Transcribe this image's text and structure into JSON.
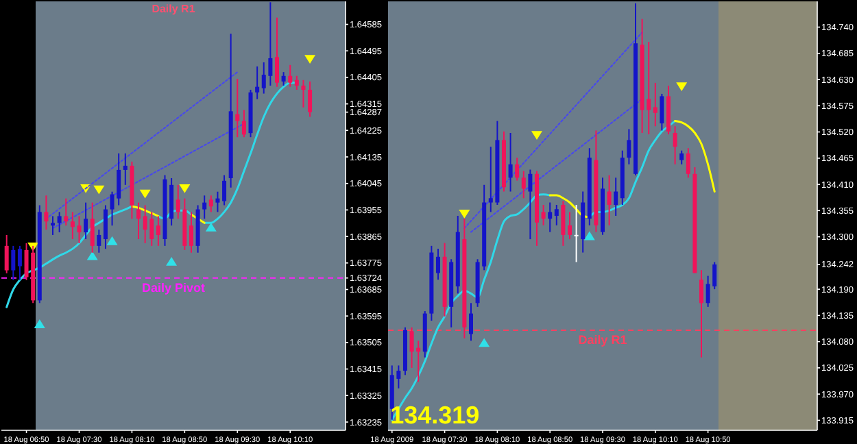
{
  "chart_data": [
    {
      "type": "candlestick",
      "x": [
        "2009-08-18T06:35",
        "2009-08-18T06:40",
        "2009-08-18T06:45",
        "2009-08-18T06:50",
        "2009-08-18T06:55",
        "2009-08-18T07:00",
        "2009-08-18T07:05",
        "2009-08-18T07:10",
        "2009-08-18T07:15",
        "2009-08-18T07:20",
        "2009-08-18T07:25",
        "2009-08-18T07:30",
        "2009-08-18T07:35",
        "2009-08-18T07:40",
        "2009-08-18T07:45",
        "2009-08-18T07:50",
        "2009-08-18T07:55",
        "2009-08-18T08:00",
        "2009-08-18T08:05",
        "2009-08-18T08:10",
        "2009-08-18T08:15",
        "2009-08-18T08:20",
        "2009-08-18T08:25",
        "2009-08-18T08:30",
        "2009-08-18T08:35",
        "2009-08-18T08:40",
        "2009-08-18T08:45",
        "2009-08-18T08:50",
        "2009-08-18T08:55",
        "2009-08-18T09:00",
        "2009-08-18T09:05",
        "2009-08-18T09:10",
        "2009-08-18T09:15",
        "2009-08-18T09:20",
        "2009-08-18T09:25",
        "2009-08-18T09:30",
        "2009-08-18T09:35",
        "2009-08-18T09:40",
        "2009-08-18T09:45",
        "2009-08-18T09:50",
        "2009-08-18T09:55",
        "2009-08-18T10:00",
        "2009-08-18T10:05",
        "2009-08-18T10:10",
        "2009-08-18T10:15",
        "2009-08-18T10:20",
        "2009-08-18T10:25"
      ],
      "ohlc": [
        [
          1.63833,
          1.6387,
          1.6374,
          1.6375
        ],
        [
          1.6375,
          1.63833,
          1.63717,
          1.63819
        ],
        [
          1.63764,
          1.63833,
          1.63717,
          1.63823
        ],
        [
          1.63819,
          1.63842,
          1.63717,
          1.63727
        ],
        [
          1.6381,
          1.63833,
          1.63639,
          1.63648
        ],
        [
          1.63648,
          1.63971,
          1.63639,
          1.63948
        ],
        [
          1.63948,
          1.64004,
          1.63888,
          1.63916
        ],
        [
          1.63902,
          1.63934,
          1.6387,
          1.63911
        ],
        [
          1.63911,
          1.63948,
          1.63879,
          1.63934
        ],
        [
          1.63934,
          1.63994,
          1.63902,
          1.63916
        ],
        [
          1.63916,
          1.63948,
          1.63856,
          1.63897
        ],
        [
          1.63902,
          1.63934,
          1.63842,
          1.63879
        ],
        [
          1.63879,
          1.6398,
          1.63856,
          1.63925
        ],
        [
          1.63925,
          1.6398,
          1.6381,
          1.63833
        ],
        [
          1.63833,
          1.63888,
          1.6381,
          1.6387
        ],
        [
          1.63856,
          1.63971,
          1.63823,
          1.63957
        ],
        [
          1.63957,
          1.64017,
          1.63902,
          1.64008
        ],
        [
          1.63994,
          1.64147,
          1.63971,
          1.64091
        ],
        [
          1.64091,
          1.64147,
          1.6404,
          1.64105
        ],
        [
          1.64105,
          1.64119,
          1.63925,
          1.63971
        ],
        [
          1.63957,
          1.6398,
          1.63856,
          1.63925
        ],
        [
          1.63934,
          1.63971,
          1.63842,
          1.63888
        ],
        [
          1.63925,
          1.63948,
          1.63833,
          1.63856
        ],
        [
          1.63902,
          1.63934,
          1.63833,
          1.6387
        ],
        [
          1.63856,
          1.64073,
          1.63833,
          1.64059
        ],
        [
          1.63925,
          1.64063,
          1.63902,
          1.6404
        ],
        [
          1.6399,
          1.6404,
          1.63925,
          1.63948
        ],
        [
          1.63957,
          1.63994,
          1.63819,
          1.63833
        ],
        [
          1.63902,
          1.63948,
          1.6381,
          1.63833
        ],
        [
          1.63833,
          1.63971,
          1.6381,
          1.63957
        ],
        [
          1.63957,
          1.64004,
          1.63925,
          1.6398
        ],
        [
          1.6399,
          1.64004,
          1.63948,
          1.63967
        ],
        [
          1.6398,
          1.64017,
          1.63948,
          1.63994
        ],
        [
          1.63985,
          1.64073,
          1.63971,
          1.64054
        ],
        [
          1.64063,
          1.64553,
          1.64031,
          1.6429
        ],
        [
          1.6428,
          1.644,
          1.64202,
          1.64257
        ],
        [
          1.64257,
          1.64294,
          1.64202,
          1.64211
        ],
        [
          1.64216,
          1.64363,
          1.64202,
          1.64354
        ],
        [
          1.64354,
          1.64442,
          1.64331,
          1.64373
        ],
        [
          1.64368,
          1.64456,
          1.6435,
          1.64414
        ],
        [
          1.6441,
          1.6466,
          1.64377,
          1.6447
        ],
        [
          1.64474,
          1.64608,
          1.64373,
          1.64387
        ],
        [
          1.64391,
          1.64423,
          1.64377,
          1.6441
        ],
        [
          1.6441,
          1.64447,
          1.64373,
          1.64387
        ],
        [
          1.64396,
          1.6441,
          1.64363,
          1.64377
        ],
        [
          1.64377,
          1.64396,
          1.64303,
          1.64363
        ],
        [
          1.64363,
          1.64391,
          1.64271,
          1.64287
        ]
      ],
      "colors": [
        "#f0145a",
        "#1414c8",
        "#1414c8",
        "#f0145a",
        "#f0145a",
        "#1414c8",
        "#f0145a",
        "#1414c8",
        "#1414c8",
        "#f0145a",
        "#f0145a",
        "#f0145a",
        "#1414c8",
        "#f0145a",
        "#1414c8",
        "#1414c8",
        "#1414c8",
        "#1414c8",
        "#1414c8",
        "#f0145a",
        "#f0145a",
        "#f0145a",
        "#f0145a",
        "#f0145a",
        "#1414c8",
        "#1414c8",
        "#f0145a",
        "#f0145a",
        "#f0145a",
        "#1414c8",
        "#1414c8",
        "#f0145a",
        "#1414c8",
        "#1414c8",
        "#1414c8",
        "#f0145a",
        "#f0145a",
        "#1414c8",
        "#1414c8",
        "#1414c8",
        "#1414c8",
        "#f0145a",
        "#1414c8",
        "#f0145a",
        "#f0145a",
        "#f0145a",
        "#f0145a"
      ],
      "series": [
        {
          "type": "line",
          "color": "#30d8e8",
          "values": [
            1.63625,
            1.63685,
            1.63717,
            1.6374,
            1.6375,
            1.63759,
            1.63773,
            1.63787,
            1.638,
            1.6381,
            1.63823,
            1.63842,
            1.6387,
            1.63897,
            1.63911,
            1.63925,
            1.63939,
            1.63948,
            1.63957,
            1.63967,
            null,
            null,
            null,
            1.63934,
            1.63925,
            1.63948,
            1.63953,
            1.63953,
            1.63939,
            null,
            1.63911,
            1.63911,
            1.63925,
            1.63948,
            1.6398,
            1.64027,
            1.64087,
            1.64147,
            1.64211,
            1.64271,
            1.64317,
            1.6435,
            1.64373,
            1.64387,
            1.64387,
            null,
            null
          ]
        },
        {
          "type": "line",
          "color": "#ffff00",
          "values": [
            null,
            null,
            null,
            null,
            null,
            null,
            null,
            null,
            null,
            null,
            null,
            null,
            null,
            null,
            null,
            null,
            null,
            null,
            null,
            1.63967,
            1.63962,
            1.63953,
            1.63944,
            1.63934,
            null,
            null,
            null,
            null,
            1.63939,
            1.63925,
            1.63911,
            null,
            null,
            null,
            null,
            null,
            null,
            null,
            null,
            null,
            null,
            null,
            null,
            null,
            null,
            null,
            null
          ]
        },
        {
          "type": "scatter",
          "marker": "triangle",
          "color": "#ffff00",
          "x": [
            "2009-08-18T06:55",
            "2009-08-18T07:35",
            "2009-08-18T07:45",
            "2009-08-18T08:20",
            "2009-08-18T08:50",
            "2009-08-18T10:25"
          ],
          "values": [
            1.63833,
            1.64031,
            1.64027,
            1.64013,
            1.64031,
            1.6447
          ]
        },
        {
          "type": "scatter",
          "marker": "triangle",
          "color": "#30e0e8",
          "x": [
            "2009-08-18T07:00",
            "2009-08-18T07:40",
            "2009-08-18T07:55",
            "2009-08-18T08:40",
            "2009-08-18T09:10"
          ],
          "values": [
            1.63565,
            1.63796,
            1.63847,
            1.63777,
            1.63893
          ]
        },
        {
          "type": "line",
          "line_style": "dotted",
          "color": "#4646f0",
          "x": [
            "2009-08-18T07:05",
            "2009-08-18T09:30"
          ],
          "values": [
            1.63925,
            1.64423
          ]
        },
        {
          "type": "line",
          "line_style": "dotted",
          "color": "#4646f0",
          "x": [
            "2009-08-18T07:10",
            "2009-08-18T09:35"
          ],
          "values": [
            1.63893,
            1.64248
          ]
        }
      ],
      "xlim": [
        "2009-08-18T06:31",
        "2009-08-18T10:52"
      ],
      "xticks": [
        {
          "value": "2009-08-18T06:50",
          "label": "18 Aug 06:50"
        },
        {
          "value": "2009-08-18T07:30",
          "label": "18 Aug 07:30"
        },
        {
          "value": "2009-08-18T08:10",
          "label": "18 Aug 08:10"
        },
        {
          "value": "2009-08-18T08:50",
          "label": "18 Aug 08:50"
        },
        {
          "value": "2009-08-18T09:30",
          "label": "18 Aug 09:30"
        },
        {
          "value": "2009-08-18T10:10",
          "label": "18 Aug 10:10"
        }
      ],
      "ylim": [
        1.63207,
        1.64663
      ],
      "yticks": [
        1.63235,
        1.63325,
        1.63415,
        1.63505,
        1.63595,
        1.63685,
        1.63724,
        1.63775,
        1.63865,
        1.63955,
        1.64045,
        1.64135,
        1.64225,
        1.64287,
        1.64315,
        1.64405,
        1.64495,
        1.64585
      ],
      "ref_lines": [
        {
          "axis": "y",
          "value": 1.63724,
          "label": "Daily Pivot",
          "color": "#ff20ff",
          "line_style": "dashed"
        }
      ],
      "bands": [
        {
          "axis": "x",
          "from": "2009-08-18T06:31",
          "to": "2009-08-18T06:57",
          "color": "#000000"
        }
      ],
      "annotations": [
        "Daily R1"
      ]
    },
    {
      "type": "candlestick",
      "x": [
        "2009-08-18T06:50",
        "2009-08-18T06:55",
        "2009-08-18T07:00",
        "2009-08-18T07:05",
        "2009-08-18T07:10",
        "2009-08-18T07:15",
        "2009-08-18T07:20",
        "2009-08-18T07:25",
        "2009-08-18T07:30",
        "2009-08-18T07:35",
        "2009-08-18T07:40",
        "2009-08-18T07:45",
        "2009-08-18T07:50",
        "2009-08-18T07:55",
        "2009-08-18T08:00",
        "2009-08-18T08:05",
        "2009-08-18T08:10",
        "2009-08-18T08:15",
        "2009-08-18T08:20",
        "2009-08-18T08:25",
        "2009-08-18T08:30",
        "2009-08-18T08:35",
        "2009-08-18T08:40",
        "2009-08-18T08:45",
        "2009-08-18T08:50",
        "2009-08-18T08:55",
        "2009-08-18T09:00",
        "2009-08-18T09:05",
        "2009-08-18T09:10",
        "2009-08-18T09:15",
        "2009-08-18T09:20",
        "2009-08-18T09:25",
        "2009-08-18T09:30",
        "2009-08-18T09:35",
        "2009-08-18T09:40",
        "2009-08-18T09:45",
        "2009-08-18T09:50",
        "2009-08-18T09:55",
        "2009-08-18T10:00",
        "2009-08-18T10:05",
        "2009-08-18T10:10",
        "2009-08-18T10:15",
        "2009-08-18T10:20",
        "2009-08-18T10:25",
        "2009-08-18T10:30",
        "2009-08-18T10:35",
        "2009-08-18T10:40",
        "2009-08-18T10:45",
        "2009-08-18T10:50",
        "2009-08-18T10:55"
      ],
      "ohlc": [
        [
          133.939,
          134.03,
          133.916,
          134.01
        ],
        [
          134.002,
          134.03,
          133.982,
          134.019
        ],
        [
          134.019,
          134.11,
          134.01,
          134.104
        ],
        [
          134.102,
          134.11,
          134.025,
          134.059
        ],
        [
          134.067,
          134.082,
          133.996,
          134.059
        ],
        [
          134.059,
          134.144,
          134.047,
          134.139
        ],
        [
          134.139,
          134.281,
          134.124,
          134.267
        ],
        [
          134.224,
          134.275,
          134.21,
          134.258
        ],
        [
          134.258,
          134.287,
          134.133,
          134.153
        ],
        [
          134.153,
          134.253,
          134.11,
          134.247
        ],
        [
          134.196,
          134.344,
          134.181,
          134.31
        ],
        [
          134.295,
          134.338,
          134.087,
          134.11
        ],
        [
          134.096,
          134.161,
          134.082,
          134.139
        ],
        [
          134.161,
          134.253,
          134.153,
          134.247
        ],
        [
          134.238,
          134.409,
          134.23,
          134.372
        ],
        [
          134.372,
          134.489,
          134.352,
          134.381
        ],
        [
          134.372,
          134.543,
          134.367,
          134.503
        ],
        [
          134.503,
          134.521,
          134.395,
          134.404
        ],
        [
          134.424,
          134.518,
          134.395,
          134.452
        ],
        [
          134.452,
          134.466,
          134.418,
          134.424
        ],
        [
          134.424,
          134.438,
          134.381,
          134.401
        ],
        [
          134.395,
          134.441,
          134.295,
          134.432
        ],
        [
          134.432,
          134.438,
          134.281,
          134.33
        ],
        [
          134.352,
          134.367,
          134.324,
          134.338
        ],
        [
          134.338,
          134.372,
          134.31,
          134.352
        ],
        [
          134.344,
          134.367,
          134.324,
          134.358
        ],
        [
          134.367,
          134.375,
          134.281,
          134.304
        ],
        [
          134.324,
          134.352,
          134.295,
          134.304
        ],
        [
          134.304,
          134.367,
          134.247,
          134.304
        ],
        [
          134.295,
          134.395,
          134.267,
          134.372
        ],
        [
          134.338,
          134.486,
          134.324,
          134.466
        ],
        [
          134.461,
          134.523,
          134.31,
          134.324
        ],
        [
          134.31,
          134.424,
          134.304,
          134.401
        ],
        [
          134.395,
          134.429,
          134.324,
          134.367
        ],
        [
          134.367,
          134.424,
          134.344,
          134.395
        ],
        [
          134.381,
          134.481,
          134.367,
          134.466
        ],
        [
          134.466,
          134.526,
          134.452,
          134.503
        ],
        [
          134.432,
          134.79,
          134.429,
          134.706
        ],
        [
          134.703,
          134.757,
          134.518,
          134.566
        ],
        [
          134.589,
          134.709,
          134.515,
          134.566
        ],
        [
          134.572,
          134.623,
          134.532,
          134.56
        ],
        [
          134.538,
          134.6,
          134.523,
          134.595
        ],
        [
          134.595,
          134.617,
          134.515,
          134.521
        ],
        [
          134.518,
          134.532,
          134.452,
          134.489
        ],
        [
          134.461,
          134.481,
          134.452,
          134.475
        ],
        [
          134.475,
          134.486,
          134.424,
          134.432
        ],
        [
          134.432,
          134.446,
          134.224,
          134.224
        ],
        [
          134.21,
          134.23,
          134.047,
          134.161
        ],
        [
          134.161,
          134.218,
          134.153,
          134.201
        ],
        [
          134.196,
          134.247,
          134.19,
          134.242
        ]
      ],
      "colors": [
        "#1414c8",
        "#1414c8",
        "#1414c8",
        "#f0145a",
        "#f0145a",
        "#1414c8",
        "#1414c8",
        "#1414c8",
        "#f0145a",
        "#1414c8",
        "#1414c8",
        "#f0145a",
        "#1414c8",
        "#1414c8",
        "#1414c8",
        "#1414c8",
        "#1414c8",
        "#f0145a",
        "#1414c8",
        "#f0145a",
        "#f0145a",
        "#1414c8",
        "#f0145a",
        "#f0145a",
        "#1414c8",
        "#1414c8",
        "#f0145a",
        "#f0145a",
        "#ffffff",
        "#1414c8",
        "#1414c8",
        "#f0145a",
        "#1414c8",
        "#f0145a",
        "#1414c8",
        "#1414c8",
        "#1414c8",
        "#1414c8",
        "#f0145a",
        "#f0145a",
        "#f0145a",
        "#1414c8",
        "#f0145a",
        "#f0145a",
        "#1414c8",
        "#f0145a",
        "#f0145a",
        "#f0145a",
        "#1414c8",
        "#1414c8"
      ],
      "series": [
        {
          "type": "line",
          "color": "#30d8e8",
          "values": [
            133.916,
            133.939,
            133.962,
            133.982,
            134.008,
            134.039,
            134.076,
            134.11,
            134.133,
            134.161,
            134.176,
            134.187,
            134.181,
            134.173,
            134.21,
            134.247,
            134.293,
            134.332,
            134.344,
            134.347,
            134.358,
            134.372,
            134.387,
            134.389,
            134.387,
            null,
            null,
            null,
            null,
            null,
            134.341,
            134.352,
            134.352,
            134.355,
            134.361,
            134.367,
            134.381,
            134.415,
            134.446,
            134.481,
            134.503,
            134.521,
            134.532,
            134.543,
            null,
            null,
            null,
            null,
            null,
            null
          ]
        },
        {
          "type": "line",
          "color": "#ffff00",
          "values": [
            null,
            null,
            null,
            null,
            null,
            null,
            null,
            null,
            null,
            null,
            null,
            null,
            null,
            null,
            null,
            null,
            null,
            null,
            null,
            null,
            null,
            null,
            null,
            null,
            134.387,
            134.387,
            134.381,
            134.372,
            134.358,
            134.344,
            134.341,
            null,
            null,
            null,
            null,
            null,
            null,
            null,
            null,
            null,
            null,
            null,
            null,
            134.543,
            134.54,
            134.532,
            134.518,
            134.495,
            134.452,
            134.395
          ]
        },
        {
          "type": "scatter",
          "marker": "triangle",
          "color": "#ffff00",
          "x": [
            "2009-08-18T07:45",
            "2009-08-18T08:40",
            "2009-08-18T10:30"
          ],
          "values": [
            134.35,
            134.515,
            134.617
          ]
        },
        {
          "type": "scatter",
          "marker": "triangle",
          "color": "#30e0e8",
          "x": [
            "2009-08-18T08:00",
            "2009-08-18T09:20"
          ],
          "values": [
            134.076,
            134.3
          ]
        },
        {
          "type": "line",
          "line_style": "dotted",
          "color": "#4646f0",
          "x": [
            "2009-08-18T07:45",
            "2009-08-18T10:00"
          ],
          "values": [
            134.318,
            134.729
          ]
        },
        {
          "type": "line",
          "line_style": "dotted",
          "color": "#4646f0",
          "x": [
            "2009-08-18T07:50",
            "2009-08-18T10:00"
          ],
          "values": [
            134.31,
            134.589
          ]
        }
      ],
      "xlim": [
        "2009-08-18T06:47",
        "2009-08-18T12:13"
      ],
      "xticks": [
        {
          "value": "2009-08-18T06:50",
          "label": "18 Aug 2009"
        },
        {
          "value": "2009-08-18T07:30",
          "label": "18 Aug 07:30"
        },
        {
          "value": "2009-08-18T08:10",
          "label": "18 Aug 08:10"
        },
        {
          "value": "2009-08-18T08:50",
          "label": "18 Aug 08:50"
        },
        {
          "value": "2009-08-18T09:30",
          "label": "18 Aug 09:30"
        },
        {
          "value": "2009-08-18T10:10",
          "label": "18 Aug 10:10"
        },
        {
          "value": "2009-08-18T10:50",
          "label": "18 Aug 10:50"
        }
      ],
      "ylim": [
        133.894,
        134.794
      ],
      "yticks": [
        {
          "value": 133.915,
          "label": "133.915"
        },
        {
          "value": 133.97,
          "label": "133.970"
        },
        {
          "value": 134.025,
          "label": "134.025"
        },
        {
          "value": 134.08,
          "label": "134.080"
        },
        {
          "value": 134.135,
          "label": "134.135"
        },
        {
          "value": 134.19,
          "label": "134.190"
        },
        {
          "value": 134.242,
          "label": "134.242"
        },
        {
          "value": 134.3,
          "label": "134.300"
        },
        {
          "value": 134.355,
          "label": "134.355"
        },
        {
          "value": 134.41,
          "label": "134.410"
        },
        {
          "value": 134.465,
          "label": "134.465"
        },
        {
          "value": 134.52,
          "label": "134.520"
        },
        {
          "value": 134.575,
          "label": "134.575"
        },
        {
          "value": 134.63,
          "label": "134.630"
        },
        {
          "value": 134.685,
          "label": "134.685"
        },
        {
          "value": 134.74,
          "label": "134.740"
        }
      ],
      "ref_lines": [
        {
          "axis": "y",
          "value": 134.104,
          "label": "Daily R1",
          "color": "#ff4060",
          "line_style": "dashed"
        }
      ],
      "bands": [
        {
          "axis": "x",
          "from": "2009-08-18T10:58",
          "to": "2009-08-18T12:13",
          "color": "#8c8a76"
        }
      ],
      "annotations": [
        "134.319"
      ]
    }
  ]
}
